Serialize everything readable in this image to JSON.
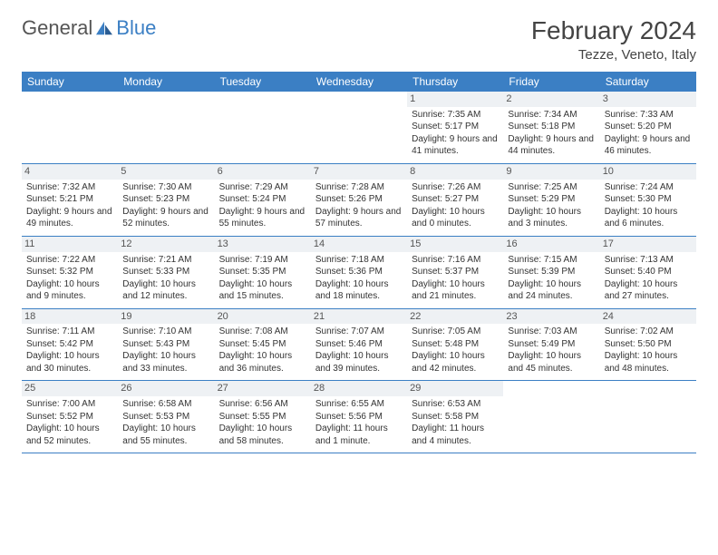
{
  "brand": {
    "first": "General",
    "second": "Blue"
  },
  "title": "February 2024",
  "location": "Tezze, Veneto, Italy",
  "colors": {
    "accent": "#3b7fc4",
    "dayband": "#eef1f4",
    "text": "#333333",
    "bg": "#ffffff"
  },
  "fonts": {
    "title_size": 28,
    "header_size": 12,
    "cell_size": 10
  },
  "headers": [
    "Sunday",
    "Monday",
    "Tuesday",
    "Wednesday",
    "Thursday",
    "Friday",
    "Saturday"
  ],
  "weeks": [
    [
      null,
      null,
      null,
      null,
      {
        "n": "1",
        "sunrise": "7:35 AM",
        "sunset": "5:17 PM",
        "daylight": "9 hours and 41 minutes."
      },
      {
        "n": "2",
        "sunrise": "7:34 AM",
        "sunset": "5:18 PM",
        "daylight": "9 hours and 44 minutes."
      },
      {
        "n": "3",
        "sunrise": "7:33 AM",
        "sunset": "5:20 PM",
        "daylight": "9 hours and 46 minutes."
      }
    ],
    [
      {
        "n": "4",
        "sunrise": "7:32 AM",
        "sunset": "5:21 PM",
        "daylight": "9 hours and 49 minutes."
      },
      {
        "n": "5",
        "sunrise": "7:30 AM",
        "sunset": "5:23 PM",
        "daylight": "9 hours and 52 minutes."
      },
      {
        "n": "6",
        "sunrise": "7:29 AM",
        "sunset": "5:24 PM",
        "daylight": "9 hours and 55 minutes."
      },
      {
        "n": "7",
        "sunrise": "7:28 AM",
        "sunset": "5:26 PM",
        "daylight": "9 hours and 57 minutes."
      },
      {
        "n": "8",
        "sunrise": "7:26 AM",
        "sunset": "5:27 PM",
        "daylight": "10 hours and 0 minutes."
      },
      {
        "n": "9",
        "sunrise": "7:25 AM",
        "sunset": "5:29 PM",
        "daylight": "10 hours and 3 minutes."
      },
      {
        "n": "10",
        "sunrise": "7:24 AM",
        "sunset": "5:30 PM",
        "daylight": "10 hours and 6 minutes."
      }
    ],
    [
      {
        "n": "11",
        "sunrise": "7:22 AM",
        "sunset": "5:32 PM",
        "daylight": "10 hours and 9 minutes."
      },
      {
        "n": "12",
        "sunrise": "7:21 AM",
        "sunset": "5:33 PM",
        "daylight": "10 hours and 12 minutes."
      },
      {
        "n": "13",
        "sunrise": "7:19 AM",
        "sunset": "5:35 PM",
        "daylight": "10 hours and 15 minutes."
      },
      {
        "n": "14",
        "sunrise": "7:18 AM",
        "sunset": "5:36 PM",
        "daylight": "10 hours and 18 minutes."
      },
      {
        "n": "15",
        "sunrise": "7:16 AM",
        "sunset": "5:37 PM",
        "daylight": "10 hours and 21 minutes."
      },
      {
        "n": "16",
        "sunrise": "7:15 AM",
        "sunset": "5:39 PM",
        "daylight": "10 hours and 24 minutes."
      },
      {
        "n": "17",
        "sunrise": "7:13 AM",
        "sunset": "5:40 PM",
        "daylight": "10 hours and 27 minutes."
      }
    ],
    [
      {
        "n": "18",
        "sunrise": "7:11 AM",
        "sunset": "5:42 PM",
        "daylight": "10 hours and 30 minutes."
      },
      {
        "n": "19",
        "sunrise": "7:10 AM",
        "sunset": "5:43 PM",
        "daylight": "10 hours and 33 minutes."
      },
      {
        "n": "20",
        "sunrise": "7:08 AM",
        "sunset": "5:45 PM",
        "daylight": "10 hours and 36 minutes."
      },
      {
        "n": "21",
        "sunrise": "7:07 AM",
        "sunset": "5:46 PM",
        "daylight": "10 hours and 39 minutes."
      },
      {
        "n": "22",
        "sunrise": "7:05 AM",
        "sunset": "5:48 PM",
        "daylight": "10 hours and 42 minutes."
      },
      {
        "n": "23",
        "sunrise": "7:03 AM",
        "sunset": "5:49 PM",
        "daylight": "10 hours and 45 minutes."
      },
      {
        "n": "24",
        "sunrise": "7:02 AM",
        "sunset": "5:50 PM",
        "daylight": "10 hours and 48 minutes."
      }
    ],
    [
      {
        "n": "25",
        "sunrise": "7:00 AM",
        "sunset": "5:52 PM",
        "daylight": "10 hours and 52 minutes."
      },
      {
        "n": "26",
        "sunrise": "6:58 AM",
        "sunset": "5:53 PM",
        "daylight": "10 hours and 55 minutes."
      },
      {
        "n": "27",
        "sunrise": "6:56 AM",
        "sunset": "5:55 PM",
        "daylight": "10 hours and 58 minutes."
      },
      {
        "n": "28",
        "sunrise": "6:55 AM",
        "sunset": "5:56 PM",
        "daylight": "11 hours and 1 minute."
      },
      {
        "n": "29",
        "sunrise": "6:53 AM",
        "sunset": "5:58 PM",
        "daylight": "11 hours and 4 minutes."
      },
      null,
      null
    ]
  ],
  "labels": {
    "sunrise": "Sunrise:",
    "sunset": "Sunset:",
    "daylight": "Daylight:"
  }
}
